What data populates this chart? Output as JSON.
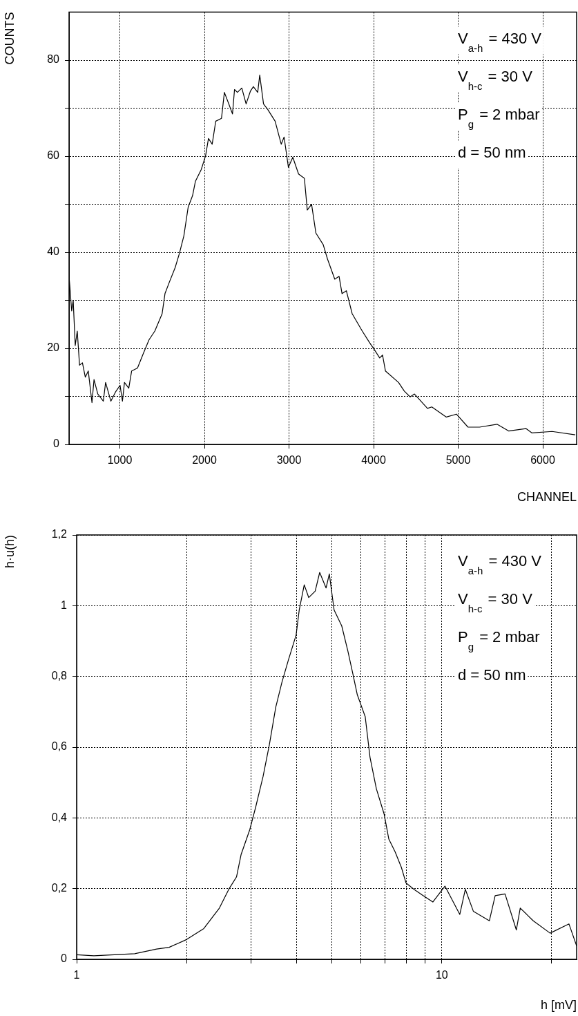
{
  "chart_data": [
    {
      "type": "line",
      "xlabel": "CHANNEL",
      "ylabel": "COUNTS",
      "color": "#000000",
      "marker": "none",
      "grid": true,
      "xlim": [
        400,
        6400
      ],
      "xticks": [
        1000,
        2000,
        3000,
        4000,
        5000,
        6000
      ],
      "ylim": [
        0,
        90
      ],
      "yticks": [
        0,
        {
          "value": 10,
          "label": null
        },
        20,
        {
          "value": 30,
          "label": null
        },
        40,
        {
          "value": 50,
          "label": null
        },
        60,
        {
          "value": 70,
          "label": null
        },
        80
      ],
      "annotations": [
        "V$_{a-h}$ = 430 V",
        "V$_{h-c}$ = 30 V",
        "P$_{g}$ = 2 mbar",
        "d = 50 nm"
      ],
      "x": [
        400,
        431,
        449,
        473,
        497,
        524,
        558,
        592,
        627,
        671,
        695,
        740,
        805,
        832,
        894,
        952,
        1003,
        1031,
        1055,
        1106,
        1140,
        1209,
        1277,
        1346,
        1414,
        1500,
        1534,
        1586,
        1654,
        1705,
        1757,
        1808,
        1860,
        1894,
        1962,
        2014,
        2048,
        2092,
        2134,
        2202,
        2236,
        2288,
        2332,
        2356,
        2390,
        2442,
        2493,
        2545,
        2579,
        2630,
        2654,
        2699,
        2750,
        2836,
        2908,
        2942,
        2993,
        3045,
        3113,
        3182,
        3216,
        3267,
        3318,
        3404,
        3455,
        3541,
        3592,
        3627,
        3678,
        3747,
        3866,
        3952,
        4021,
        4072,
        4106,
        4140,
        4295,
        4363,
        4432,
        4483,
        4637,
        4688,
        4860,
        4979,
        5116,
        5253,
        5459,
        5596,
        5801,
        5870,
        6110,
        6384
      ],
      "values": [
        35,
        27.8,
        30,
        20.6,
        23.6,
        16.5,
        17,
        14,
        15.3,
        8.7,
        13.5,
        10.5,
        9,
        12.9,
        9,
        11,
        12.3,
        9,
        12.9,
        11.7,
        15.3,
        15.9,
        18.9,
        21.8,
        23.6,
        27.2,
        31.4,
        33.8,
        36.8,
        39.8,
        43.4,
        49.4,
        51.8,
        54.8,
        57.2,
        60.1,
        63.7,
        62.5,
        67.3,
        67.9,
        73.3,
        70.9,
        68.8,
        73.9,
        73.3,
        74.2,
        70.9,
        73.6,
        74.5,
        73.3,
        76.9,
        70.9,
        69.7,
        67.3,
        62.5,
        64,
        57.7,
        59.8,
        56.3,
        55.4,
        48.8,
        50,
        44,
        41.6,
        38.6,
        34.4,
        35,
        31.4,
        32,
        27.2,
        23.6,
        21.2,
        19.4,
        18,
        18.6,
        15.3,
        12.9,
        11.1,
        9.9,
        10.5,
        7.5,
        7.8,
        5.7,
        6.3,
        3.6,
        3.6,
        4.2,
        2.8,
        3.3,
        2.4,
        2.7,
        2
      ]
    },
    {
      "type": "line",
      "xlabel": "h [mV]",
      "ylabel": "h·u(h)",
      "color": "#000000",
      "marker": "none",
      "grid": true,
      "log": "x",
      "xlim": [
        1,
        23.4
      ],
      "xticks": [
        1,
        {
          "value": 2,
          "label": null
        },
        {
          "value": 3,
          "label": null
        },
        {
          "value": 4,
          "label": null
        },
        {
          "value": 5,
          "label": null
        },
        {
          "value": 6,
          "label": null
        },
        {
          "value": 7,
          "label": null
        },
        {
          "value": 8,
          "label": null
        },
        {
          "value": 9,
          "label": null
        },
        10,
        {
          "value": 20,
          "label": null
        }
      ],
      "ylim": [
        0,
        1.2
      ],
      "yticks": [
        0,
        {
          "value": 0.2,
          "label": "0,2"
        },
        {
          "value": 0.4,
          "label": "0,4"
        },
        {
          "value": 0.6,
          "label": "0,6"
        },
        {
          "value": 0.8,
          "label": "0,8"
        },
        1,
        {
          "value": 1.2,
          "label": "1,2"
        }
      ],
      "annotations": [
        "V$_{a-h}$ = 430 V",
        "V$_{h-c}$ = 30 V",
        "P$_{g}$ = 2 mbar",
        "d = 50 nm"
      ],
      "x": [
        1,
        1.115,
        1.442,
        1.656,
        1.792,
        2,
        2.23,
        2.46,
        2.61,
        2.74,
        2.82,
        2.98,
        3.09,
        3.24,
        3.37,
        3.51,
        3.65,
        3.8,
        3.99,
        4.07,
        4.2,
        4.32,
        4.5,
        4.63,
        4.82,
        4.92,
        5.07,
        5.32,
        5.53,
        5.7,
        5.87,
        6.17,
        6.36,
        6.62,
        6.95,
        7.16,
        7.45,
        7.75,
        7.98,
        8.39,
        8.9,
        9.45,
        10.2,
        11.2,
        11.6,
        12.2,
        13.5,
        14,
        14.9,
        16,
        16.4,
        17.8,
        19.8,
        22.3,
        23.4
      ],
      "values": [
        0.013,
        0.01,
        0.016,
        0.029,
        0.034,
        0.056,
        0.087,
        0.145,
        0.198,
        0.233,
        0.296,
        0.367,
        0.429,
        0.517,
        0.606,
        0.713,
        0.784,
        0.846,
        0.917,
        0.988,
        1.059,
        1.023,
        1.041,
        1.094,
        1.05,
        1.09,
        0.988,
        0.943,
        0.872,
        0.81,
        0.748,
        0.686,
        0.571,
        0.482,
        0.411,
        0.34,
        0.304,
        0.26,
        0.216,
        0.198,
        0.18,
        0.162,
        0.207,
        0.127,
        0.198,
        0.136,
        0.109,
        0.18,
        0.185,
        0.083,
        0.145,
        0.109,
        0.074,
        0.1,
        0.038
      ]
    }
  ]
}
